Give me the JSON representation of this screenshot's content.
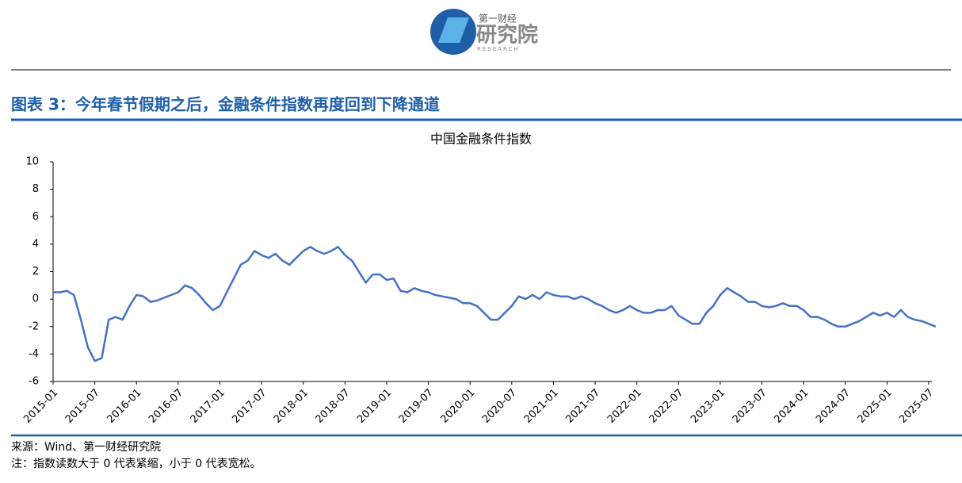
{
  "header": {
    "logo_top": "第一财经",
    "logo_main": "研究院",
    "logo_en": "RESEARCH"
  },
  "figure_title": "图表 3：今年春节假期之后，金融条件指数再度回到下降通道",
  "chart_data": {
    "type": "line",
    "title": "中国金融条件指数",
    "color": "#4472c4",
    "x": [
      "2015-01",
      "2015-02",
      "2015-03",
      "2015-04",
      "2015-05",
      "2015-06",
      "2015-07",
      "2015-08",
      "2015-09",
      "2015-10",
      "2015-11",
      "2015-12",
      "2016-01",
      "2016-02",
      "2016-03",
      "2016-04",
      "2016-05",
      "2016-06",
      "2016-07",
      "2016-08",
      "2016-09",
      "2016-10",
      "2016-11",
      "2016-12",
      "2017-01",
      "2017-02",
      "2017-03",
      "2017-04",
      "2017-05",
      "2017-06",
      "2017-07",
      "2017-08",
      "2017-09",
      "2017-10",
      "2017-11",
      "2017-12",
      "2018-01",
      "2018-02",
      "2018-03",
      "2018-04",
      "2018-05",
      "2018-06",
      "2018-07",
      "2018-08",
      "2018-09",
      "2018-10",
      "2018-11",
      "2018-12",
      "2019-01",
      "2019-02",
      "2019-03",
      "2019-04",
      "2019-05",
      "2019-06",
      "2019-07",
      "2019-08",
      "2019-09",
      "2019-10",
      "2019-11",
      "2019-12",
      "2020-01",
      "2020-02",
      "2020-03",
      "2020-04",
      "2020-05",
      "2020-06",
      "2020-07",
      "2020-08",
      "2020-09",
      "2020-10",
      "2020-11",
      "2020-12",
      "2021-01",
      "2021-02",
      "2021-03",
      "2021-04",
      "2021-05",
      "2021-06",
      "2021-07",
      "2021-08",
      "2021-09",
      "2021-10",
      "2021-11",
      "2021-12",
      "2022-01",
      "2022-02",
      "2022-03",
      "2022-04",
      "2022-05",
      "2022-06",
      "2022-07",
      "2022-08",
      "2022-09",
      "2022-10",
      "2022-11",
      "2022-12",
      "2023-01",
      "2023-02",
      "2023-03",
      "2023-04",
      "2023-05",
      "2023-06",
      "2023-07",
      "2023-08",
      "2023-09",
      "2023-10",
      "2023-11",
      "2023-12",
      "2024-01",
      "2024-02",
      "2024-03",
      "2024-04",
      "2024-05",
      "2024-06",
      "2024-07",
      "2024-08",
      "2024-09",
      "2024-10",
      "2024-11",
      "2024-12",
      "2025-01",
      "2025-02",
      "2025-03",
      "2025-04",
      "2025-05",
      "2025-06",
      "2025-07",
      "2025-08"
    ],
    "values": [
      0.5,
      0.5,
      0.6,
      0.3,
      -1.5,
      -3.5,
      -4.5,
      -4.3,
      -1.5,
      -1.3,
      -1.5,
      -0.5,
      0.3,
      0.2,
      -0.2,
      -0.1,
      0.1,
      0.3,
      0.5,
      1.0,
      0.8,
      0.3,
      -0.3,
      -0.8,
      -0.5,
      0.5,
      1.5,
      2.5,
      2.8,
      3.5,
      3.2,
      3.0,
      3.3,
      2.8,
      2.5,
      3.0,
      3.5,
      3.8,
      3.5,
      3.3,
      3.5,
      3.8,
      3.2,
      2.8,
      2.0,
      1.2,
      1.8,
      1.8,
      1.4,
      1.5,
      0.6,
      0.5,
      0.8,
      0.6,
      0.5,
      0.3,
      0.2,
      0.1,
      0.0,
      -0.3,
      -0.3,
      -0.5,
      -1.0,
      -1.5,
      -1.5,
      -1.0,
      -0.5,
      0.2,
      0.0,
      0.3,
      0.0,
      0.5,
      0.3,
      0.2,
      0.2,
      0.0,
      0.2,
      0.0,
      -0.3,
      -0.5,
      -0.8,
      -1.0,
      -0.8,
      -0.5,
      -0.8,
      -1.0,
      -1.0,
      -0.8,
      -0.8,
      -0.5,
      -1.2,
      -1.5,
      -1.8,
      -1.8,
      -1.0,
      -0.5,
      0.3,
      0.8,
      0.5,
      0.2,
      -0.2,
      -0.2,
      -0.5,
      -0.6,
      -0.5,
      -0.3,
      -0.5,
      -0.5,
      -0.8,
      -1.3,
      -1.3,
      -1.5,
      -1.8,
      -2.0,
      -2.0,
      -1.8,
      -1.6,
      -1.3,
      -1.0,
      -1.2,
      -1.0,
      -1.3,
      -0.8,
      -1.3,
      -1.5,
      -1.6,
      -1.8,
      -2.0
    ],
    "xticks": [
      "2015-01",
      "2015-07",
      "2016-01",
      "2016-07",
      "2017-01",
      "2017-07",
      "2018-01",
      "2018-07",
      "2019-01",
      "2019-07",
      "2020-01",
      "2020-07",
      "2021-01",
      "2021-07",
      "2022-01",
      "2022-07",
      "2023-01",
      "2023-07",
      "2024-01",
      "2024-07",
      "2025-01",
      "2025-07"
    ],
    "ylim": [
      -6,
      10
    ],
    "yticks": [
      -6,
      -4,
      -2,
      0,
      2,
      4,
      6,
      8,
      10
    ],
    "grid": false
  },
  "notes": [
    "来源：Wind、第一财经研究院",
    "注：指数读数大于 0 代表紧缩，小于 0 代表宽松。"
  ]
}
